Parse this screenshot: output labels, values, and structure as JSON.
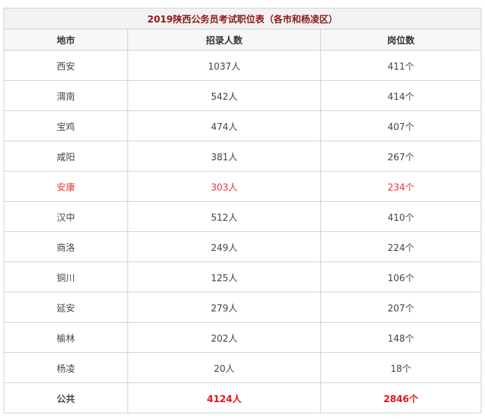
{
  "title": "2019陕西公务员考试职位表（各市和杨凌区）",
  "headers": [
    "地市",
    "招录人数",
    "岗位数"
  ],
  "rows": [
    {
      "city": "西安",
      "recruits": "1037人",
      "posts": "411个"
    },
    {
      "city": "渭南",
      "recruits": "542人",
      "posts": "414个"
    },
    {
      "city": "宝鸡",
      "recruits": "474人",
      "posts": "407个"
    },
    {
      "city": "咸阳",
      "recruits": "381人",
      "posts": "267个"
    },
    {
      "city": "安康",
      "recruits": "303人",
      "posts": "234个"
    },
    {
      "city": "汉中",
      "recruits": "512人",
      "posts": "410个"
    },
    {
      "city": "商洛",
      "recruits": "249人",
      "posts": "224个"
    },
    {
      "city": "铜川",
      "recruits": "125人",
      "posts": "106个"
    },
    {
      "city": "延安",
      "recruits": "279人",
      "posts": "207个"
    },
    {
      "city": "榆林",
      "recruits": "202人",
      "posts": "148个"
    },
    {
      "city": "杨凌",
      "recruits": "20人",
      "posts": "18个"
    }
  ],
  "highlight_row": 4,
  "total": {
    "city": "公共",
    "recruits": "4124人",
    "posts": "2846个"
  },
  "colors": {
    "title": "#8b1a1a",
    "highlight": "#e8343a",
    "total": "#e8121a"
  }
}
